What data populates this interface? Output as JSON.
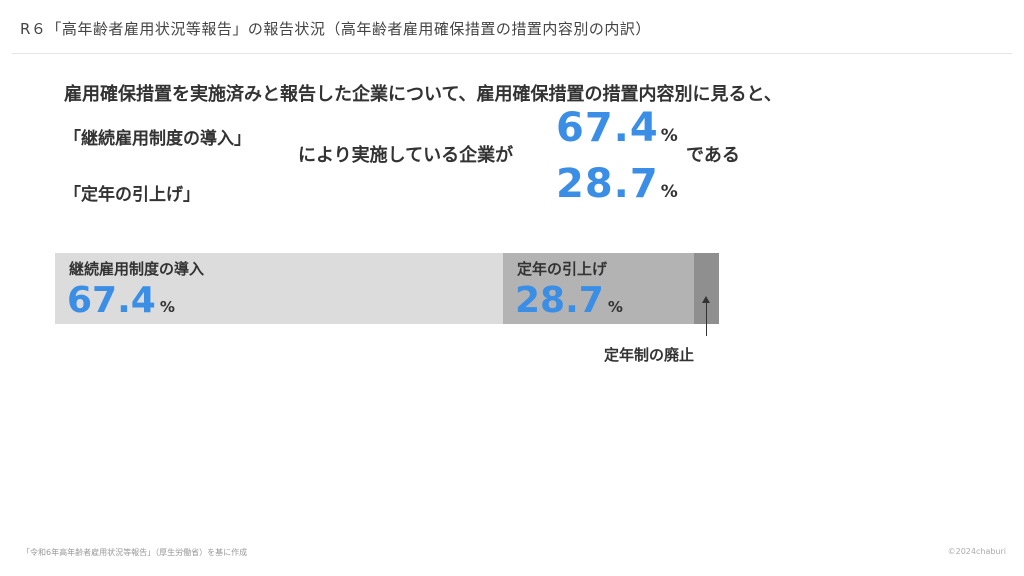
{
  "header": {
    "title": "R６「高年齢者雇用状況等報告」の報告状況（高年齢者雇用確保措置の措置内容別の内訳）"
  },
  "summary": {
    "line1": "雇用確保措置を実施済みと報告した企業について、雇用確保措置の措置内容別に見ると、",
    "item1_label": "「継続雇用制度の導入」",
    "item2_label": "「定年の引上げ」",
    "middle_text": "により実施している企業が",
    "trailing_text": "である",
    "item1_value": "67.4",
    "item2_value": "28.7",
    "unit": "%"
  },
  "chart_data": {
    "type": "bar",
    "orientation": "horizontal-stacked",
    "categories": [
      "継続雇用制度の導入",
      "定年の引上げ",
      "定年制の廃止"
    ],
    "values": [
      67.4,
      28.7,
      3.9
    ],
    "display_values": [
      "67.4",
      "28.7",
      ""
    ],
    "unit": "%",
    "colors": [
      "#dcdcdc",
      "#b3b3b3",
      "#8f8f8f"
    ],
    "callout": "定年制の廃止"
  },
  "footer": {
    "source": "「令和6年高年齢者雇用状況等報告」（厚生労働省）を基に作成",
    "credit": "©2024chaburi"
  }
}
